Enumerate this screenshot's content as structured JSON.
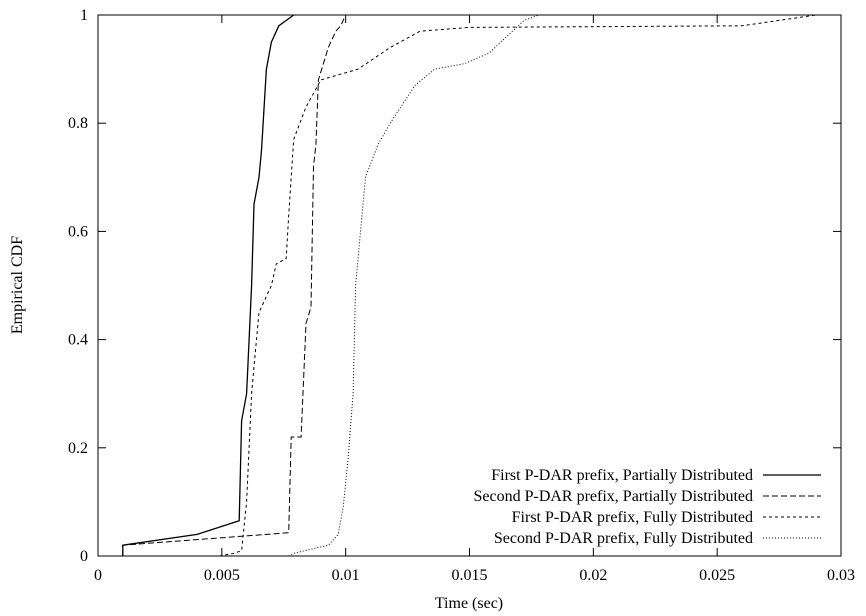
{
  "chart_data": {
    "type": "line",
    "title": "",
    "xlabel": "Time (sec)",
    "ylabel": "Empirical CDF",
    "xlim": [
      0,
      0.03
    ],
    "ylim": [
      0,
      1
    ],
    "x_ticks": [
      0,
      0.005,
      0.01,
      0.015,
      0.02,
      0.025,
      0.03
    ],
    "y_ticks": [
      0,
      0.2,
      0.4,
      0.6,
      0.8,
      1
    ],
    "x_tick_labels": [
      "0",
      "0.005",
      "0.01",
      "0.015",
      "0.02",
      "0.025",
      "0.03"
    ],
    "y_tick_labels": [
      "0",
      "0.2",
      "0.4",
      "0.6",
      "0.8",
      "1"
    ],
    "grid": false,
    "legend_position": "bottom-right",
    "series": [
      {
        "name": "First P-DAR prefix, Partially Distributed",
        "dash": "solid",
        "points": [
          [
            0.001,
            0.0
          ],
          [
            0.001,
            0.02
          ],
          [
            0.004,
            0.04
          ],
          [
            0.0057,
            0.065
          ],
          [
            0.0058,
            0.25
          ],
          [
            0.006,
            0.3
          ],
          [
            0.0062,
            0.5
          ],
          [
            0.0063,
            0.65
          ],
          [
            0.0065,
            0.7
          ],
          [
            0.0066,
            0.75
          ],
          [
            0.0068,
            0.9
          ],
          [
            0.007,
            0.95
          ],
          [
            0.0073,
            0.98
          ],
          [
            0.0079,
            1.0
          ]
        ]
      },
      {
        "name": "Second P-DAR prefix, Partially Distributed",
        "dash": "dashed",
        "points": [
          [
            0.001,
            0.0
          ],
          [
            0.001,
            0.02
          ],
          [
            0.0077,
            0.043
          ],
          [
            0.0078,
            0.22
          ],
          [
            0.0082,
            0.22
          ],
          [
            0.0084,
            0.43
          ],
          [
            0.0086,
            0.46
          ],
          [
            0.0087,
            0.72
          ],
          [
            0.0088,
            0.76
          ],
          [
            0.0089,
            0.88
          ],
          [
            0.0093,
            0.94
          ],
          [
            0.0096,
            0.97
          ],
          [
            0.0098,
            0.98
          ],
          [
            0.01,
            1.0
          ]
        ]
      },
      {
        "name": "First P-DAR prefix, Fully Distributed",
        "dash": "short-dash",
        "points": [
          [
            0.0049,
            0.0
          ],
          [
            0.0055,
            0.005
          ],
          [
            0.0058,
            0.01
          ],
          [
            0.006,
            0.1
          ],
          [
            0.0062,
            0.3
          ],
          [
            0.0063,
            0.35
          ],
          [
            0.0065,
            0.45
          ],
          [
            0.007,
            0.5
          ],
          [
            0.0072,
            0.54
          ],
          [
            0.0076,
            0.55
          ],
          [
            0.0077,
            0.63
          ],
          [
            0.0079,
            0.77
          ],
          [
            0.0084,
            0.83
          ],
          [
            0.009,
            0.88
          ],
          [
            0.0105,
            0.9
          ],
          [
            0.0118,
            0.94
          ],
          [
            0.013,
            0.97
          ],
          [
            0.015,
            0.977
          ],
          [
            0.026,
            0.98
          ],
          [
            0.029,
            1.0
          ]
        ]
      },
      {
        "name": "Second P-DAR prefix, Fully Distributed",
        "dash": "dotted",
        "points": [
          [
            0.0077,
            0.0
          ],
          [
            0.0079,
            0.005
          ],
          [
            0.0093,
            0.02
          ],
          [
            0.0097,
            0.04
          ],
          [
            0.0099,
            0.09
          ],
          [
            0.0101,
            0.18
          ],
          [
            0.0103,
            0.3
          ],
          [
            0.0104,
            0.5
          ],
          [
            0.0106,
            0.6
          ],
          [
            0.0108,
            0.7
          ],
          [
            0.0113,
            0.76
          ],
          [
            0.0118,
            0.8
          ],
          [
            0.0128,
            0.87
          ],
          [
            0.0136,
            0.9
          ],
          [
            0.0148,
            0.91
          ],
          [
            0.0158,
            0.93
          ],
          [
            0.0165,
            0.96
          ],
          [
            0.0172,
            0.99
          ],
          [
            0.0178,
            1.0
          ]
        ]
      }
    ]
  }
}
